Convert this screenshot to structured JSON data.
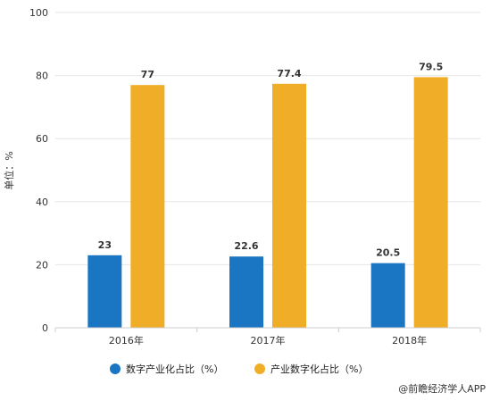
{
  "chart_data": {
    "type": "bar",
    "categories": [
      "2016年",
      "2017年",
      "2018年"
    ],
    "series": [
      {
        "name": "数字产业化占比（%）",
        "values": [
          23,
          22.6,
          20.5
        ],
        "color": "#1a76c2"
      },
      {
        "name": "产业数字化占比（%）",
        "values": [
          77,
          77.4,
          79.5
        ],
        "color": "#f0ae28"
      }
    ],
    "data_labels": [
      [
        "23",
        "22.6",
        "20.5"
      ],
      [
        "77",
        "77.4",
        "79.5"
      ]
    ],
    "ylabel": "单位：%",
    "ylim": [
      0,
      100
    ],
    "yticks": [
      "0",
      "20",
      "40",
      "60",
      "80",
      "100"
    ],
    "grid": true,
    "legend_position": "bottom"
  },
  "credit": "@前瞻经济学人APP"
}
